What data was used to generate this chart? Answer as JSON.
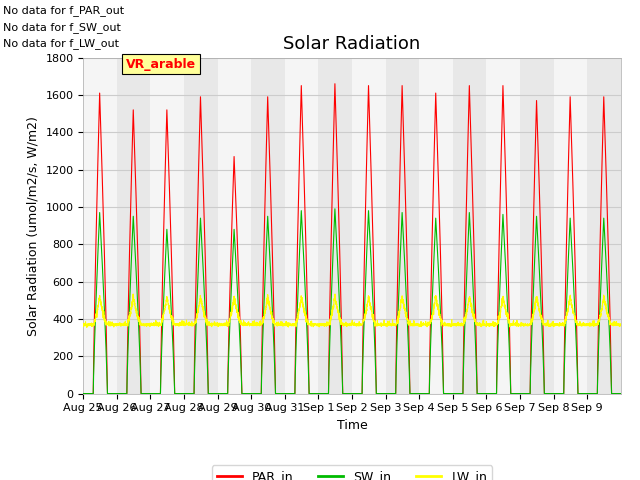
{
  "title": "Solar Radiation",
  "xlabel": "Time",
  "ylabel": "Solar Radiation (umol/m2/s, W/m2)",
  "ylim": [
    0,
    1800
  ],
  "xtick_labels": [
    "Aug 25",
    "Aug 26",
    "Aug 27",
    "Aug 28",
    "Aug 29",
    "Aug 30",
    "Aug 31",
    "Sep 1",
    "Sep 2",
    "Sep 3",
    "Sep 4",
    "Sep 5",
    "Sep 6",
    "Sep 7",
    "Sep 8",
    "Sep 9"
  ],
  "legend_entries": [
    "PAR_in",
    "SW_in",
    "LW_in"
  ],
  "legend_colors": [
    "#ff0000",
    "#00bb00",
    "#ffff00"
  ],
  "annotation_lines": [
    "No data for f_PAR_out",
    "No data for f_SW_out",
    "No data for f_LW_out"
  ],
  "vr_arable_box_color": "#ffff99",
  "vr_arable_text": "VR_arable",
  "par_peaks": [
    1610,
    1520,
    1520,
    1590,
    1270,
    1590,
    1650,
    1660,
    1650,
    1650,
    1610,
    1650,
    1650,
    1570,
    1590,
    1590
  ],
  "sw_peaks": [
    970,
    950,
    880,
    940,
    880,
    950,
    980,
    990,
    980,
    970,
    940,
    970,
    960,
    950,
    940,
    940
  ],
  "lw_nighttime": 370,
  "lw_daytime_peak": 520,
  "background_color": "#ffffff",
  "plot_bg_color": "#e8e8e8",
  "band_color_light": "#f5f5f5",
  "n_days": 16,
  "par_color": "#ff0000",
  "sw_color": "#00bb00",
  "lw_color": "#ffff00",
  "title_fontsize": 13,
  "axis_fontsize": 9,
  "tick_fontsize": 8
}
